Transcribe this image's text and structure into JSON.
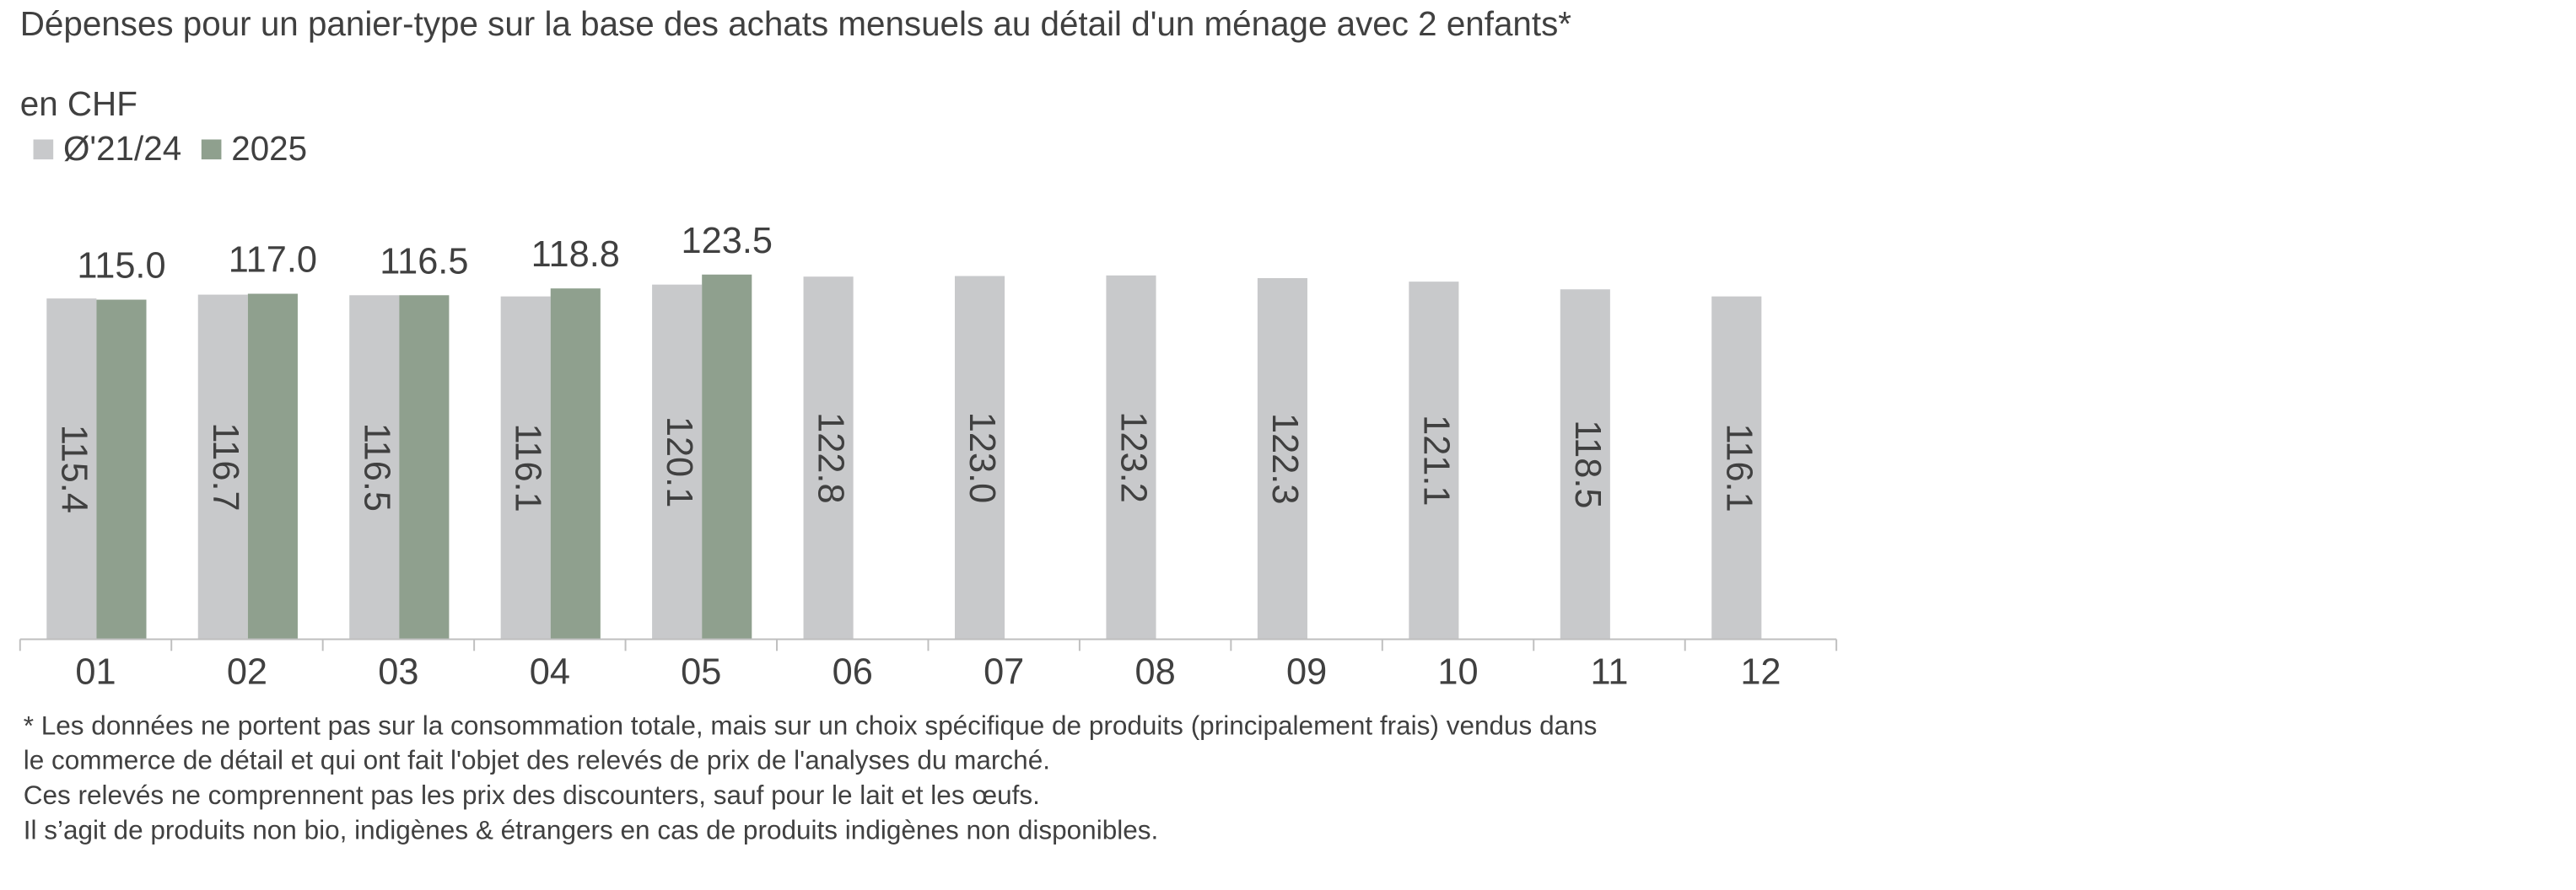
{
  "chart_data": {
    "type": "bar",
    "title": "Dépenses pour un panier-type sur la base des achats mensuels au détail d'un ménage avec 2 enfants*",
    "subtitle": "en CHF",
    "categories": [
      "01",
      "02",
      "03",
      "04",
      "05",
      "06",
      "07",
      "08",
      "09",
      "10",
      "11",
      "12"
    ],
    "series": [
      {
        "name": "Ø'21/24",
        "color": "#c8c9cb",
        "values": [
          115.4,
          116.7,
          116.5,
          116.1,
          120.1,
          122.8,
          123.0,
          123.2,
          122.3,
          121.1,
          118.5,
          116.1
        ],
        "value_labels": [
          "115.4",
          "116.7",
          "116.5",
          "116.1",
          "120.1",
          "122.8",
          "123.0",
          "123.2",
          "122.3",
          "121.1",
          "118.5",
          "116.1"
        ]
      },
      {
        "name": "2025",
        "color": "#8fa08e",
        "values": [
          115.0,
          117.0,
          116.5,
          118.8,
          123.5,
          null,
          null,
          null,
          null,
          null,
          null,
          null
        ],
        "value_labels": [
          "115.0",
          "117.0",
          "116.5",
          "118.8",
          "123.5",
          null,
          null,
          null,
          null,
          null,
          null,
          null
        ]
      }
    ],
    "ylim": [
      0,
      140
    ],
    "legend": "top-left",
    "footnote": [
      "* Les données ne portent pas sur la consommation totale, mais sur un choix spécifique de produits (principalement frais) vendus dans",
      "le commerce de détail et qui ont fait l'objet des relevés de prix de l'analyses du marché.",
      "Ces relevés ne comprennent pas les prix des discounters, sauf pour le lait et les œufs.",
      "Il s’agit de produits non bio, indigènes & étrangers en cas de produits indigènes non disponibles."
    ]
  }
}
